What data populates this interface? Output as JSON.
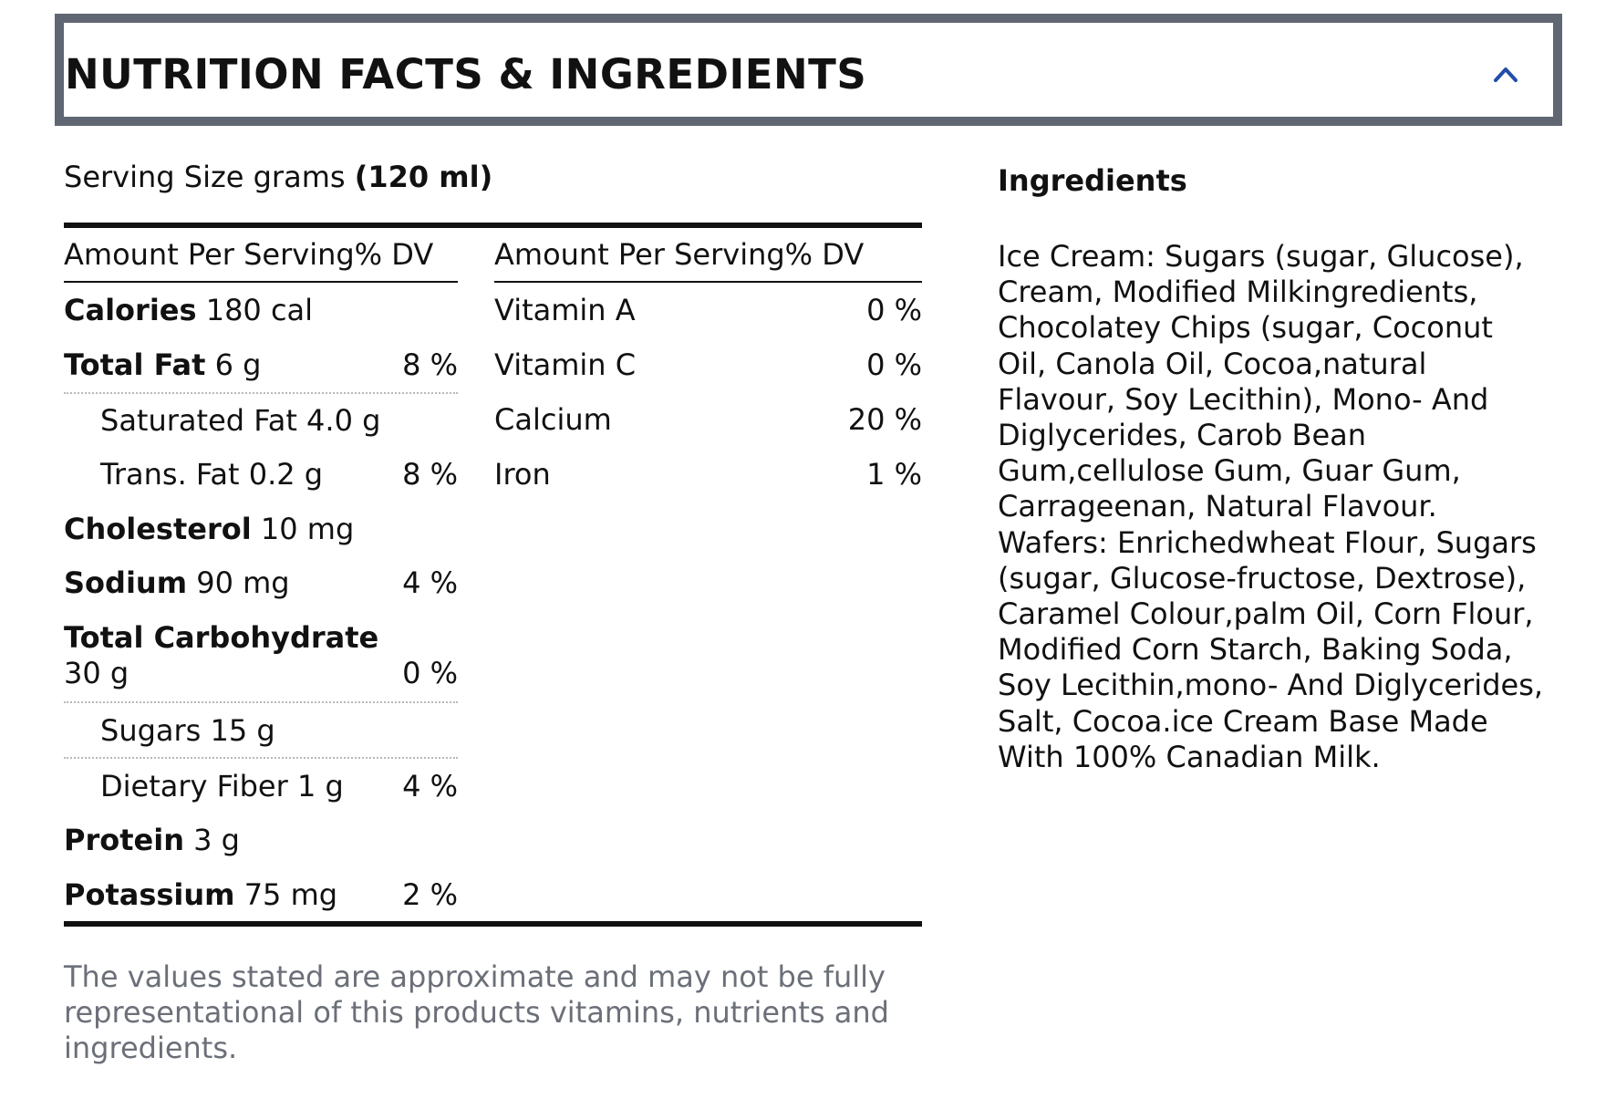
{
  "header": {
    "title": "NUTRITION FACTS & INGREDIENTS",
    "toggle_icon": "chevron-up-icon"
  },
  "serving": {
    "label": "Serving Size grams",
    "value": "(120 ml)"
  },
  "nutrition": {
    "left_header": "Amount Per Serving% DV",
    "right_header": "Amount Per Serving% DV",
    "left_rows": [
      {
        "name": "Calories",
        "amount": "180 cal",
        "dv": ""
      },
      {
        "name": "Total Fat",
        "amount": "6 g",
        "dv": "8 %"
      },
      {
        "name": "Saturated Fat",
        "amount": "4.0 g",
        "dv": ""
      },
      {
        "name": "Trans. Fat",
        "amount": "0.2 g",
        "dv": "8 %"
      },
      {
        "name": "Cholesterol",
        "amount": "10 mg",
        "dv": ""
      },
      {
        "name": "Sodium",
        "amount": "90 mg",
        "dv": "4 %"
      },
      {
        "name": "Total Carbohydrate",
        "amount": "30 g",
        "dv": "0 %"
      },
      {
        "name": "Sugars",
        "amount": "15 g",
        "dv": ""
      },
      {
        "name": "Dietary Fiber",
        "amount": "1 g",
        "dv": "4 %"
      },
      {
        "name": "Protein",
        "amount": "3 g",
        "dv": ""
      },
      {
        "name": "Potassium",
        "amount": "75 mg",
        "dv": "2 %"
      }
    ],
    "right_rows": [
      {
        "name": "Vitamin A",
        "dv": "0 %"
      },
      {
        "name": "Vitamin C",
        "dv": "0 %"
      },
      {
        "name": "Calcium",
        "dv": "20 %"
      },
      {
        "name": "Iron",
        "dv": "1 %"
      }
    ]
  },
  "disclaimer": "The values stated are approximate and may not be fully representational of this products vitamins, nutrients and ingredients.",
  "ingredients": {
    "title": "Ingredients",
    "text": "Ice Cream: Sugars (sugar, Glucose), Cream, Modified Milkingredients, Chocolatey Chips (sugar, Coconut Oil, Canola Oil, Cocoa,natural Flavour, Soy Lecithin), Mono- And Diglycerides, Carob Bean Gum,cellulose Gum, Guar Gum, Carrageenan, Natural Flavour. Wafers: Enrichedwheat Flour, Sugars (sugar, Glucose-fructose, Dextrose), Caramel Colour,palm Oil, Corn Flour, Modified Corn Starch, Baking Soda, Soy Lecithin,mono- And Diglycerides, Salt, Cocoa.ice Cream Base Made With 100% Canadian Milk."
  },
  "colors": {
    "header_border": "#606672",
    "chevron": "#1f4fa8",
    "text": "#111111",
    "disclaimer_text": "#6b6f78",
    "dotted_rule": "#b9b9b9"
  }
}
